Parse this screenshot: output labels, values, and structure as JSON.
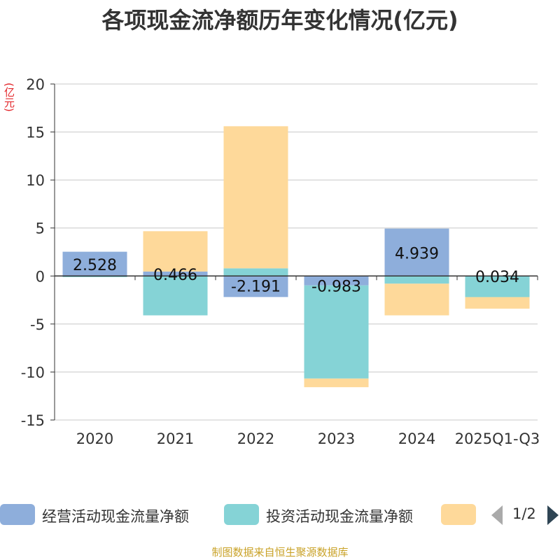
{
  "title": "各项现金流净额历年变化情况(亿元)",
  "source": "制图数据来自恒生聚源数据库",
  "pager": "1/2",
  "chart_data": {
    "type": "bar",
    "stacked": true,
    "title": "各项现金流净额历年变化情况(亿元)",
    "ylabel": "(亿元)",
    "xlabel": "",
    "ylim": [
      -15,
      20
    ],
    "yticks": [
      20,
      15,
      10,
      5,
      0,
      -5,
      -10,
      -15
    ],
    "grid": true,
    "categories": [
      "2020",
      "2021",
      "2022",
      "2023",
      "2024",
      "2025Q1-Q3"
    ],
    "series": [
      {
        "name": "经营活动现金流量净额",
        "color": "#8eaedb",
        "values": [
          2.528,
          0.466,
          -2.191,
          -0.983,
          4.939,
          0.034
        ]
      },
      {
        "name": "投资活动现金流量净额",
        "color": "#85d3d6",
        "values": [
          -0.12,
          -4.1,
          0.8,
          -9.7,
          -0.8,
          -2.2
        ]
      },
      {
        "name": "",
        "color": "#fed99a",
        "values": [
          0,
          4.2,
          14.8,
          -0.9,
          -3.3,
          -1.2
        ]
      }
    ],
    "data_labels": [
      "2.528",
      "0.466",
      "-2.191",
      "-0.983",
      "4.939",
      "0.034"
    ]
  }
}
